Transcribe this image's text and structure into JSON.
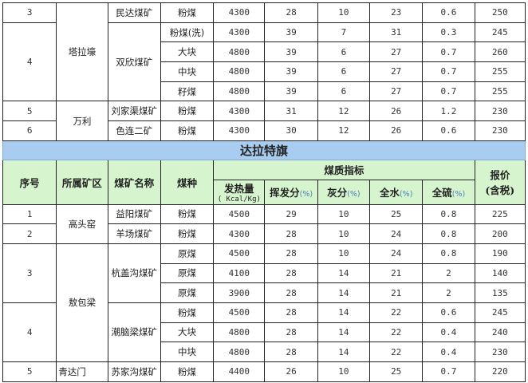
{
  "headers": {
    "no": "序号",
    "area": "所属矿区",
    "mine": "煤矿名称",
    "type": "煤种",
    "quality": "煤质指标",
    "heat": "发热量",
    "heat_unit": "( Kcal/Kg)",
    "volatile": "挥发分",
    "ash": "灰分",
    "water": "全水",
    "sulfur": "全硫",
    "pct": "(%)",
    "price": "报价",
    "price_note": "(含税)"
  },
  "colors": {
    "section_bg": "#a8cdf0",
    "header_bg": "#d6f5cf"
  },
  "sections": [
    {
      "title": null,
      "areas": [
        {
          "name": "塔拉壕",
          "mines": [
            {
              "no": "3",
              "name": "民达煤矿",
              "coals": [
                [
                  "粉煤",
                  "4300",
                  "28",
                  "10",
                  "23",
                  "0.6",
                  "250"
                ]
              ]
            },
            {
              "no": "4",
              "name": "双欣煤矿",
              "coals": [
                [
                  "粉煤(洗)",
                  "4300",
                  "39",
                  "7",
                  "31",
                  "0.3",
                  "245"
                ],
                [
                  "大块",
                  "4800",
                  "39",
                  "6",
                  "27",
                  "0.7",
                  "260"
                ],
                [
                  "中块",
                  "4800",
                  "39",
                  "6",
                  "27",
                  "0.7",
                  "255"
                ],
                [
                  "籽煤",
                  "4800",
                  "39",
                  "6",
                  "27",
                  "0.7",
                  "255"
                ]
              ]
            }
          ]
        },
        {
          "name": "万利",
          "mines": [
            {
              "no": "5",
              "name": "刘家渠煤矿",
              "coals": [
                [
                  "粉煤",
                  "4300",
                  "31",
                  "12",
                  "26",
                  "1.2",
                  "230"
                ]
              ]
            },
            {
              "no": "6",
              "name": "色连二矿",
              "coals": [
                [
                  "粉煤",
                  "4300",
                  "30",
                  "12",
                  "26",
                  "0.6",
                  "230"
                ]
              ]
            }
          ]
        }
      ]
    },
    {
      "title": "达拉特旗",
      "areas": [
        {
          "name": "高头窑",
          "mines": [
            {
              "no": "1",
              "name": "益阳煤矿",
              "coals": [
                [
                  "粉煤",
                  "4500",
                  "29",
                  "10",
                  "25",
                  "0.8",
                  "225"
                ]
              ]
            },
            {
              "no": "2",
              "name": "羊场煤矿",
              "coals": [
                [
                  "粉煤",
                  "4300",
                  "28",
                  "10",
                  "24",
                  "0.8",
                  "200"
                ]
              ]
            }
          ]
        },
        {
          "name": "敖包梁",
          "mines": [
            {
              "no": "3",
              "name": "杭盖沟煤矿",
              "coals": [
                [
                  "原煤",
                  "4500",
                  "28",
                  "10",
                  "24",
                  "0.8",
                  "190"
                ],
                [
                  "原煤",
                  "4100",
                  "28",
                  "14",
                  "21",
                  "2",
                  "140"
                ],
                [
                  "原煤",
                  "3900",
                  "28",
                  "14",
                  "21",
                  "2",
                  "135"
                ]
              ]
            },
            {
              "no": "4",
              "name": "潮脑梁煤矿",
              "coals": [
                [
                  "粉煤",
                  "4500",
                  "28",
                  "14",
                  "22",
                  "0.6",
                  "245"
                ],
                [
                  "大块",
                  "4800",
                  "28",
                  "14",
                  "22",
                  "0.4",
                  "240"
                ],
                [
                  "中块",
                  "4800",
                  "28",
                  "14",
                  "22",
                  "0.4",
                  "230"
                ]
              ]
            }
          ]
        },
        {
          "name": "青达门",
          "align": "left",
          "mines": [
            {
              "no": "5",
              "name": "苏家沟煤矿",
              "coals": [
                [
                  "粉煤",
                  "4400",
                  "26",
                  "10",
                  "25",
                  "0.7",
                  "220"
                ]
              ]
            }
          ]
        }
      ]
    }
  ]
}
